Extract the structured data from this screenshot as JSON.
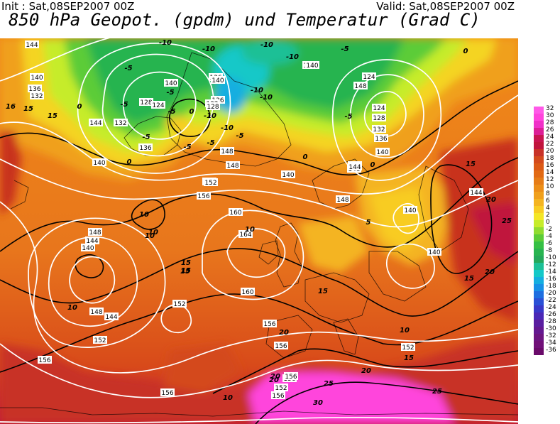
{
  "header": {
    "init": "Init : Sat,08SEP2007 00Z",
    "valid": "Valid: Sat,08SEP2007 00Z",
    "title": "850 hPa Geopot. (gpdm) und Temperatur (Grad C)"
  },
  "legend": {
    "values": [
      "32",
      "30",
      "28",
      "26",
      "24",
      "22",
      "20",
      "18",
      "16",
      "14",
      "12",
      "10",
      "8",
      "6",
      "4",
      "2",
      "0",
      "-2",
      "-4",
      "-6",
      "-8",
      "-10",
      "-12",
      "-14",
      "-16",
      "-18",
      "-20",
      "-22",
      "-24",
      "-26",
      "-28",
      "-30",
      "-32",
      "-34",
      "-36"
    ],
    "colors": [
      "#ff5ae8",
      "#ff44dc",
      "#f030c8",
      "#dc1e96",
      "#c81450",
      "#c0143c",
      "#c83228",
      "#d44a1c",
      "#dc5a16",
      "#e26a14",
      "#e67c16",
      "#ec8e18",
      "#f0a01c",
      "#f4b420",
      "#f8cc22",
      "#f4e626",
      "#c6ec2a",
      "#90dc30",
      "#5ccc38",
      "#36c044",
      "#28b450",
      "#24a85a",
      "#1cc096",
      "#14c8c8",
      "#14aee0",
      "#1690e6",
      "#1e6ee0",
      "#2a50d6",
      "#3838c8",
      "#4a28b6",
      "#5a1ea0",
      "#641890",
      "#6c1480",
      "#701078",
      "#6a0a6a"
    ]
  },
  "height_labels": [
    "144",
    "140",
    "136",
    "132",
    "128",
    "124",
    "140",
    "132",
    "144",
    "136",
    "140",
    "136",
    "140",
    "124",
    "128",
    "132",
    "136",
    "140",
    "148",
    "144",
    "140",
    "136",
    "132",
    "128",
    "124",
    "148",
    "144",
    "140",
    "152",
    "148",
    "156",
    "160",
    "164",
    "148",
    "144",
    "140",
    "152",
    "148",
    "144",
    "152",
    "160",
    "156",
    "156",
    "156",
    "152",
    "148",
    "140",
    "148",
    "144",
    "144",
    "140",
    "156",
    "156",
    "152",
    "156",
    "156",
    "140"
  ],
  "temp_labels": [
    "-10",
    "-10",
    "-10",
    "-10",
    "-5",
    "-10",
    "-5",
    "-10",
    "-10",
    "-5",
    "-5",
    "0",
    "-5",
    "-5",
    "-5",
    "-10",
    "-5",
    "0",
    "-5",
    "0",
    "-5",
    "0",
    "15",
    "15",
    "0",
    "0",
    "5",
    "10",
    "15",
    "20",
    "10",
    "10",
    "15",
    "20",
    "25",
    "20",
    "15",
    "10",
    "15",
    "10",
    "10",
    "15",
    "20",
    "25",
    "15",
    "20",
    "25",
    "30",
    "20",
    "10",
    "15",
    "16"
  ]
}
